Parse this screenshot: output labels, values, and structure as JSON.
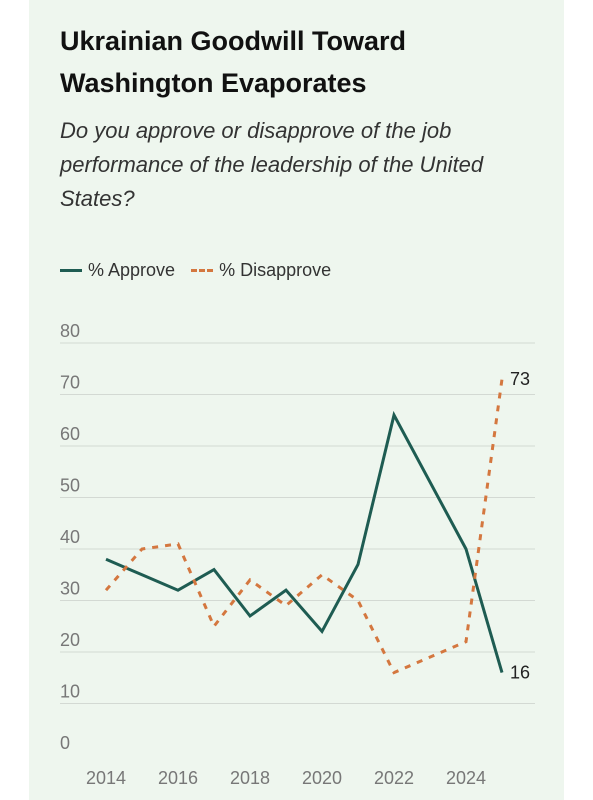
{
  "title": "Ukrainian Goodwill Toward Washington Evaporates",
  "subtitle": "Do you approve or disapprove of the job performance of the leadership of the United States?",
  "colors": {
    "approve": "#1e5c52",
    "disapprove": "#d4773f",
    "grid": "#d3d9d3",
    "tick": "#777777"
  },
  "chart_data": {
    "type": "line",
    "x": [
      2014,
      2015,
      2016,
      2017,
      2018,
      2019,
      2020,
      2021,
      2022,
      2024,
      2025
    ],
    "series": [
      {
        "name": "% Approve",
        "values": [
          38,
          35,
          32,
          36,
          27,
          32,
          24,
          37,
          66,
          40,
          16
        ]
      },
      {
        "name": "% Disapprove",
        "values": [
          32,
          40,
          41,
          25,
          34,
          29,
          35,
          30,
          16,
          22,
          73
        ]
      }
    ],
    "end_labels": [
      "16",
      "73"
    ],
    "xticks": [
      "2014",
      "2016",
      "2018",
      "2020",
      "2022",
      "2024"
    ],
    "yticks": [
      "0",
      "10",
      "20",
      "30",
      "40",
      "50",
      "60",
      "70",
      "80"
    ],
    "ylim": [
      0,
      80
    ],
    "xlim": [
      2014,
      2025
    ],
    "grid": true,
    "legend": "top-left"
  }
}
